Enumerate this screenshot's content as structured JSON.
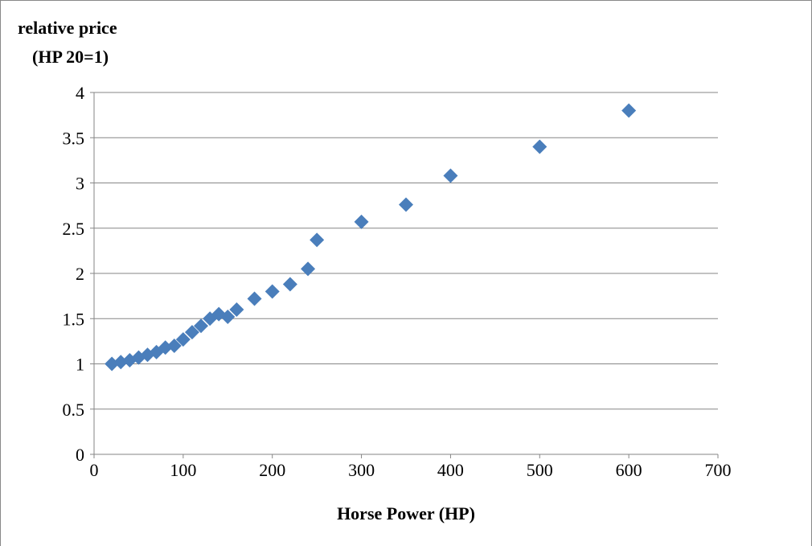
{
  "chart_data": {
    "type": "scatter",
    "y_title_lines": [
      "relative price",
      "(HP 20=1)"
    ],
    "x_title": "Horse Power (HP)",
    "x": [
      20,
      30,
      40,
      50,
      60,
      70,
      80,
      90,
      100,
      110,
      120,
      130,
      140,
      150,
      160,
      180,
      200,
      220,
      240,
      250,
      300,
      350,
      400,
      500,
      600
    ],
    "series": [
      {
        "color": "#4a7ebb",
        "values": [
          1.0,
          1.02,
          1.04,
          1.07,
          1.1,
          1.13,
          1.18,
          1.2,
          1.27,
          1.35,
          1.42,
          1.5,
          1.55,
          1.52,
          1.6,
          1.72,
          1.8,
          1.88,
          2.05,
          2.37,
          2.57,
          2.76,
          3.08,
          3.4,
          3.8
        ]
      }
    ],
    "xlim": [
      0,
      700
    ],
    "xticks": [
      0,
      100,
      200,
      300,
      400,
      500,
      600,
      700
    ],
    "ylim": [
      0,
      4
    ],
    "yticks": [
      0,
      0.5,
      1,
      1.5,
      2,
      2.5,
      3,
      3.5,
      4
    ],
    "grid": true
  }
}
